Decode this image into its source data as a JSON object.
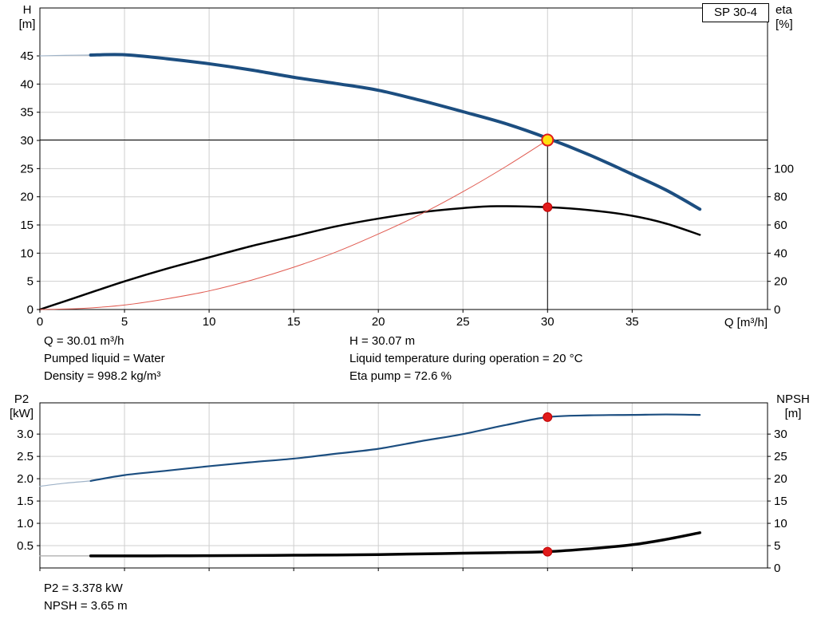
{
  "chart_data": [
    {
      "id": "hq-chart",
      "type": "line",
      "title": "SP 30-4",
      "x": {
        "label": "Q [m³/h]",
        "min": 0,
        "max": 43,
        "ticks": [
          0,
          5,
          10,
          15,
          20,
          25,
          30,
          35
        ],
        "show_tick_labels": true
      },
      "y_left": {
        "label": "H [m]",
        "label_lines": [
          "H",
          "[m]"
        ],
        "min": 0,
        "max": 53.5,
        "ticks": [
          0,
          5,
          10,
          15,
          20,
          25,
          30,
          35,
          40,
          45
        ]
      },
      "y_right": {
        "label": "eta [%]",
        "label_lines": [
          "eta",
          "[%]"
        ],
        "min": 0,
        "max": 214,
        "ticks": [
          0,
          20,
          40,
          60,
          80,
          100
        ]
      },
      "grid": true,
      "legend": false,
      "crosshair": {
        "x": 30,
        "y": 30.07
      },
      "series": [
        {
          "name": "h-curve-low-flow-segment",
          "axis": "left",
          "color": "#9fb3c8",
          "width": 1.2,
          "points": [
            [
              0,
              45.0
            ],
            [
              1.5,
              45.1
            ],
            [
              3,
              45.15
            ]
          ]
        },
        {
          "name": "h-curve",
          "axis": "left",
          "color": "#1c4e80",
          "width": 4,
          "points": [
            [
              3,
              45.15
            ],
            [
              5,
              45.2
            ],
            [
              7.5,
              44.5
            ],
            [
              10,
              43.6
            ],
            [
              12.5,
              42.5
            ],
            [
              15,
              41.2
            ],
            [
              17.5,
              40.1
            ],
            [
              20,
              38.9
            ],
            [
              22.5,
              37.1
            ],
            [
              25,
              35.1
            ],
            [
              27.5,
              33.0
            ],
            [
              30,
              30.4
            ],
            [
              32.5,
              27.4
            ],
            [
              35,
              24.0
            ],
            [
              37,
              21.2
            ],
            [
              39,
              17.8
            ]
          ]
        },
        {
          "name": "eta-curve",
          "axis": "right",
          "color": "#000000",
          "width": 2.5,
          "points": [
            [
              0,
              0
            ],
            [
              2.5,
              10
            ],
            [
              5,
              20
            ],
            [
              7.5,
              29
            ],
            [
              10,
              37
            ],
            [
              12.5,
              45
            ],
            [
              15,
              52
            ],
            [
              17.5,
              59
            ],
            [
              20,
              64.5
            ],
            [
              22.5,
              69
            ],
            [
              25,
              72
            ],
            [
              27,
              73.3
            ],
            [
              30,
              72.6
            ],
            [
              32.5,
              70.5
            ],
            [
              35,
              66.5
            ],
            [
              37,
              61
            ],
            [
              39,
              53
            ]
          ]
        },
        {
          "name": "system-curve",
          "axis": "left",
          "color": "#e05a50",
          "width": 1,
          "points": [
            [
              0,
              0
            ],
            [
              2.5,
              0.2
            ],
            [
              5,
              0.8
            ],
            [
              7.5,
              1.9
            ],
            [
              10,
              3.3
            ],
            [
              12.5,
              5.2
            ],
            [
              15,
              7.5
            ],
            [
              17.5,
              10.2
            ],
            [
              20,
              13.4
            ],
            [
              22.5,
              16.9
            ],
            [
              25,
              20.9
            ],
            [
              27.5,
              25.3
            ],
            [
              30,
              30.07
            ]
          ]
        }
      ],
      "markers": [
        {
          "name": "operating-point-marker",
          "axis": "left",
          "x": 30,
          "y": 30.07,
          "r": 7,
          "fill": "#ffdf0f",
          "stroke": "#e01b1b",
          "stroke_width": 2,
          "interactable": true
        },
        {
          "name": "eta-point-marker",
          "axis": "right",
          "x": 30,
          "y": 72.6,
          "r": 5.5,
          "fill": "#e01b1b",
          "stroke": "#c00000",
          "stroke_width": 1,
          "interactable": false
        }
      ]
    },
    {
      "id": "p2-npsh-chart",
      "type": "line",
      "title": "",
      "x": {
        "label": "",
        "min": 0,
        "max": 43,
        "ticks": [
          0,
          5,
          10,
          15,
          20,
          25,
          30,
          35
        ],
        "show_tick_labels": false
      },
      "y_left": {
        "label": "P2 [kW]",
        "label_lines": [
          "P2",
          "[kW]"
        ],
        "min": 0,
        "max": 3.7,
        "ticks": [
          0.5,
          1.0,
          1.5,
          2.0,
          2.5,
          3.0
        ],
        "tick_labels": [
          "0.5",
          "1.0",
          "1.5",
          "2.0",
          "2.5",
          "3.0"
        ]
      },
      "y_right": {
        "label": "NPSH [m]",
        "label_lines": [
          "NPSH",
          "[m]"
        ],
        "min": 0,
        "max": 37,
        "ticks": [
          0,
          5,
          10,
          15,
          20,
          25,
          30
        ]
      },
      "grid": true,
      "legend": false,
      "series": [
        {
          "name": "p2-curve-low-flow-segment",
          "axis": "left",
          "color": "#9fb3c8",
          "width": 1.2,
          "points": [
            [
              0,
              1.83
            ],
            [
              1.5,
              1.9
            ],
            [
              3,
              1.95
            ]
          ]
        },
        {
          "name": "p2-curve",
          "axis": "left",
          "color": "#1c4e80",
          "width": 2.2,
          "points": [
            [
              3,
              1.95
            ],
            [
              5,
              2.08
            ],
            [
              7.5,
              2.18
            ],
            [
              10,
              2.28
            ],
            [
              12.5,
              2.37
            ],
            [
              15,
              2.45
            ],
            [
              17.5,
              2.56
            ],
            [
              20,
              2.67
            ],
            [
              22.5,
              2.84
            ],
            [
              25,
              3.0
            ],
            [
              27.5,
              3.2
            ],
            [
              30,
              3.38
            ],
            [
              32.5,
              3.42
            ],
            [
              35,
              3.43
            ],
            [
              37,
              3.44
            ],
            [
              39,
              3.43
            ]
          ]
        },
        {
          "name": "npsh-curve-low-flow-segment",
          "axis": "right",
          "color": "#aaaaaa",
          "width": 1.2,
          "points": [
            [
              0,
              2.7
            ],
            [
              1.5,
              2.7
            ],
            [
              3,
              2.7
            ]
          ]
        },
        {
          "name": "npsh-curve",
          "axis": "right",
          "color": "#000000",
          "width": 3.5,
          "points": [
            [
              3,
              2.7
            ],
            [
              5,
              2.7
            ],
            [
              7.5,
              2.72
            ],
            [
              10,
              2.75
            ],
            [
              12.5,
              2.8
            ],
            [
              15,
              2.85
            ],
            [
              17.5,
              2.9
            ],
            [
              20,
              3.0
            ],
            [
              22.5,
              3.15
            ],
            [
              25,
              3.3
            ],
            [
              27.5,
              3.45
            ],
            [
              30,
              3.65
            ],
            [
              32.5,
              4.3
            ],
            [
              35,
              5.2
            ],
            [
              37,
              6.4
            ],
            [
              39,
              7.9
            ]
          ]
        }
      ],
      "markers": [
        {
          "name": "p2-point-marker",
          "axis": "left",
          "x": 30,
          "y": 3.38,
          "r": 5.5,
          "fill": "#e01b1b",
          "stroke": "#c00000",
          "stroke_width": 1,
          "interactable": false
        },
        {
          "name": "npsh-point-marker",
          "axis": "right",
          "x": 30,
          "y": 3.65,
          "r": 5.5,
          "fill": "#e01b1b",
          "stroke": "#c00000",
          "stroke_width": 1,
          "interactable": false
        }
      ]
    }
  ],
  "readouts": {
    "top_left": [
      "Q = 30.01 m³/h",
      "Pumped liquid = Water",
      "Density = 998.2 kg/m³"
    ],
    "top_right": [
      "H = 30.07 m",
      "Liquid temperature during operation = 20 °C",
      "Eta pump = 72.6 %"
    ],
    "bottom": [
      "P2 = 3.378 kW",
      "NPSH = 3.65 m"
    ]
  }
}
